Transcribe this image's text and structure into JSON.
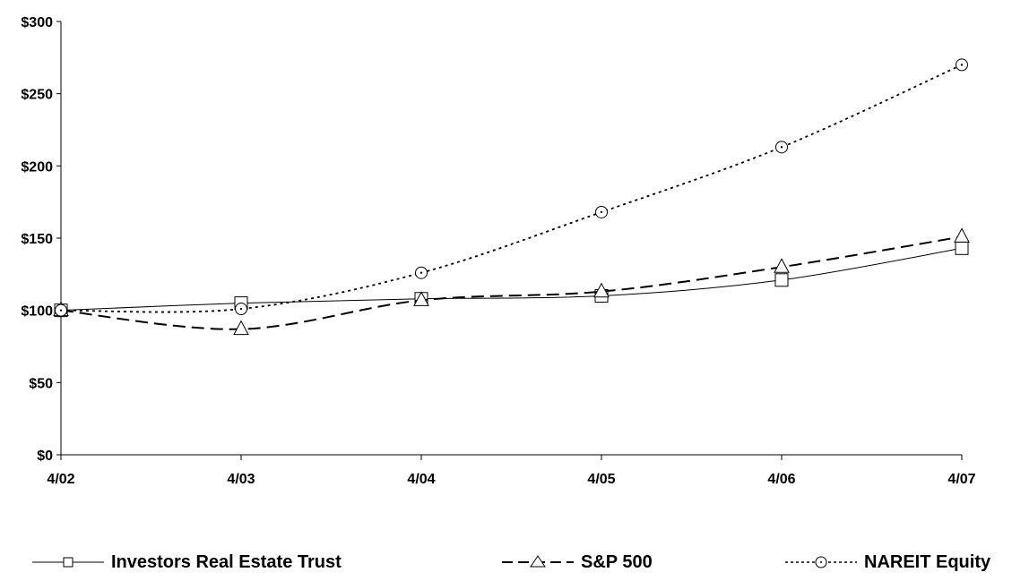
{
  "chart_data": {
    "type": "line",
    "categories": [
      "4/02",
      "4/03",
      "4/04",
      "4/05",
      "4/06",
      "4/07"
    ],
    "ylim": [
      0,
      300
    ],
    "yticks": [
      0,
      50,
      100,
      150,
      200,
      250,
      300
    ],
    "ytick_labels": [
      "$0",
      "$50",
      "$100",
      "$150",
      "$200",
      "$250",
      "$300"
    ],
    "series": [
      {
        "name": "Investors Real Estate Trust",
        "values": [
          100,
          105,
          108,
          110,
          121,
          143
        ],
        "style": "solid",
        "marker": "square"
      },
      {
        "name": "S&P 500",
        "values": [
          100,
          87,
          107,
          113,
          130,
          151
        ],
        "style": "dashed",
        "marker": "triangle"
      },
      {
        "name": "NAREIT Equity",
        "values": [
          100,
          101,
          126,
          168,
          213,
          270
        ],
        "style": "dotted",
        "marker": "circle"
      }
    ],
    "legend_position": "bottom",
    "grid": false,
    "colors": {
      "line": "#000000",
      "background": "#ffffff"
    }
  }
}
